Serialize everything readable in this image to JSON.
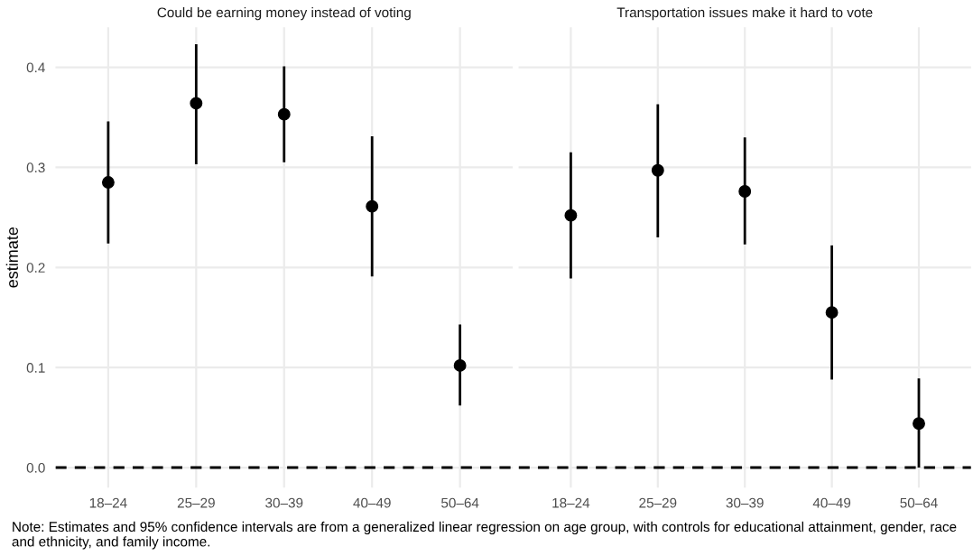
{
  "chart_data": [
    {
      "type": "scatter",
      "title": "Could be earning money instead of voting",
      "ylabel": "estimate",
      "categories": [
        "18–24",
        "25–29",
        "30–39",
        "40–49",
        "50–64"
      ],
      "series": [
        {
          "color": "#000000",
          "values": [
            0.285,
            0.364,
            0.353,
            0.261,
            0.102
          ],
          "errors": [
            [
              0.224,
              0.346
            ],
            [
              0.303,
              0.423
            ],
            [
              0.305,
              0.401
            ],
            [
              0.191,
              0.331
            ],
            [
              0.062,
              0.143
            ]
          ]
        }
      ],
      "ylim": [
        -0.02,
        0.44
      ],
      "yticks": [
        {
          "value": 0,
          "label": "0.0"
        },
        {
          "value": 0.1,
          "label": "0.1"
        },
        {
          "value": 0.2,
          "label": "0.2"
        },
        {
          "value": 0.3,
          "label": "0.3"
        },
        {
          "value": 0.4,
          "label": "0.4"
        }
      ],
      "ref_lines": [
        {
          "axis": "y",
          "value": 0,
          "color": "#000000",
          "line_style": "dashed"
        }
      ],
      "grid": true,
      "marker": "circle",
      "annotations": [
        "Note: Estimates and 95% confidence intervals are from a generalized linear regression on age group, with controls for educational attainment, gender, race and ethnicity, and family income."
      ]
    },
    {
      "type": "scatter",
      "title": "Transportation issues make it hard to vote",
      "categories": [
        "18–24",
        "25–29",
        "30–39",
        "40–49",
        "50–64"
      ],
      "series": [
        {
          "color": "#000000",
          "values": [
            0.252,
            0.297,
            0.276,
            0.155,
            0.044
          ],
          "errors": [
            [
              0.189,
              0.315
            ],
            [
              0.23,
              0.363
            ],
            [
              0.223,
              0.33
            ],
            [
              0.088,
              0.222
            ],
            [
              0.0,
              0.089
            ]
          ]
        }
      ],
      "ylim": [
        -0.02,
        0.44
      ],
      "yticks": [
        {
          "value": 0,
          "label": null
        },
        {
          "value": 0.1,
          "label": null
        },
        {
          "value": 0.2,
          "label": null
        },
        {
          "value": 0.3,
          "label": null
        },
        {
          "value": 0.4,
          "label": null
        }
      ],
      "ref_lines": [
        {
          "axis": "y",
          "value": 0,
          "color": "#000000",
          "line_style": "dashed"
        }
      ],
      "grid": true,
      "marker": "circle",
      "tick_labels": "x"
    }
  ]
}
